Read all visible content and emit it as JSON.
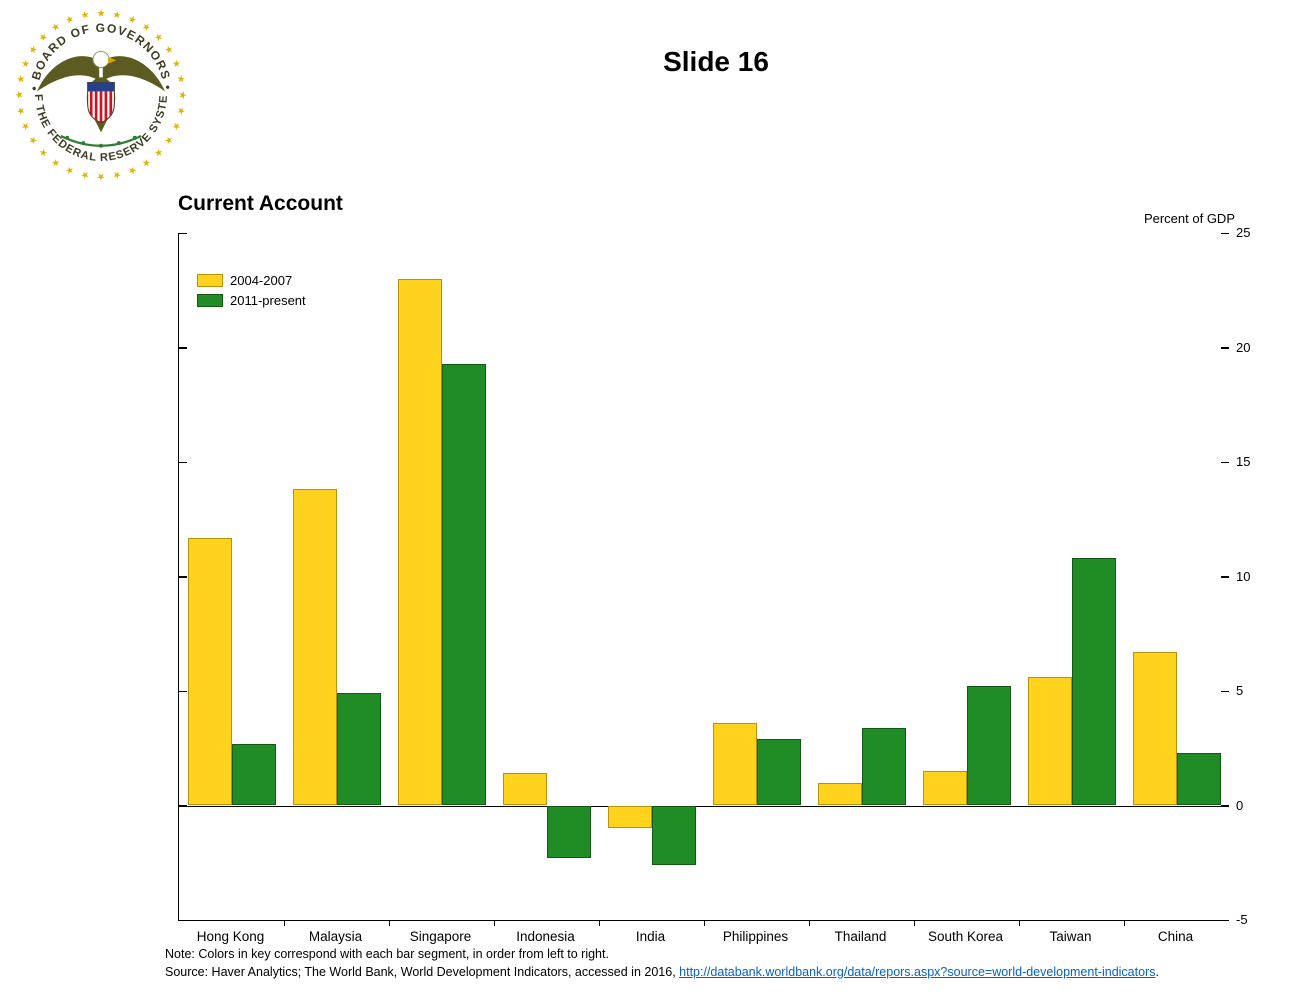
{
  "page": {
    "title": "Slide 16"
  },
  "seal": {
    "top_text": "• BOARD OF GOVERNORS •",
    "bottom_text": "OF THE FEDERAL RESERVE SYSTEM"
  },
  "chart": {
    "title": "Current Account",
    "unit_label": "Percent of GDP"
  },
  "chart_data": {
    "type": "bar",
    "title": "Current Account",
    "ylabel": "Percent of GDP",
    "categories": [
      "Hong Kong",
      "Malaysia",
      "Singapore",
      "Indonesia",
      "India",
      "Philippines",
      "Thailand",
      "South Korea",
      "Taiwan",
      "China"
    ],
    "series": [
      {
        "name": "2004-2007",
        "color": "#FFD21E",
        "border": "#B89308",
        "values": [
          11.7,
          13.8,
          23.0,
          1.4,
          -1.0,
          3.6,
          1.0,
          1.5,
          5.6,
          6.7
        ]
      },
      {
        "name": "2011-present",
        "color": "#1F8C25",
        "border": "#115915",
        "values": [
          2.7,
          4.9,
          19.3,
          -2.3,
          -2.6,
          2.9,
          3.4,
          5.2,
          10.8,
          2.3
        ]
      }
    ],
    "ylim": [
      -5,
      25
    ],
    "y_ticks": [
      25,
      20,
      15,
      10,
      5,
      0,
      -5
    ],
    "grid": false,
    "legend_position": "top-left"
  },
  "footer": {
    "note": "Note: Colors in key correspond with each bar segment, in order from left to right.",
    "source_prefix": "Source: Haver Analytics; The World Bank, World Development Indicators, accessed in 2016, ",
    "source_link": "http://databank.worldbank.org/data/repors.aspx?source=world-development-indicators",
    "source_suffix": "."
  }
}
